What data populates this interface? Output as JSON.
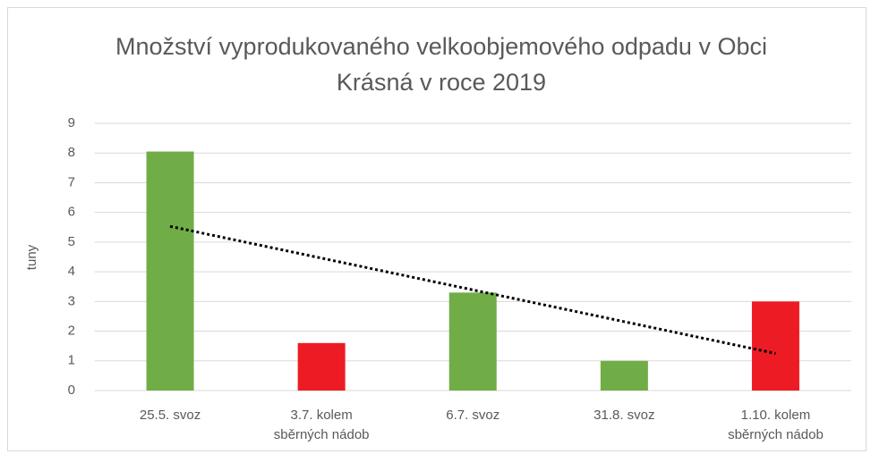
{
  "chart_data": {
    "type": "bar",
    "title": "Množství vyprodukovaného velkoobjemového odpadu v Obci Krásná v roce 2019",
    "y_label": "tuny",
    "categories": [
      "25.5. svoz",
      "3.7. kolem sběrných nádob",
      "6.7. svoz",
      "31.8. svoz",
      "1.10. kolem sběrných nádob"
    ],
    "values": [
      8.05,
      1.6,
      3.3,
      1.0,
      3.0
    ],
    "colors": [
      "#70ad47",
      "#ed1c24",
      "#70ad47",
      "#70ad47",
      "#ed1c24"
    ],
    "ylim": [
      0,
      9
    ],
    "yticks": [
      0,
      1,
      2,
      3,
      4,
      5,
      6,
      7,
      8,
      9
    ],
    "grid": true,
    "trendline": "linear",
    "trendline_color": "#000000"
  }
}
